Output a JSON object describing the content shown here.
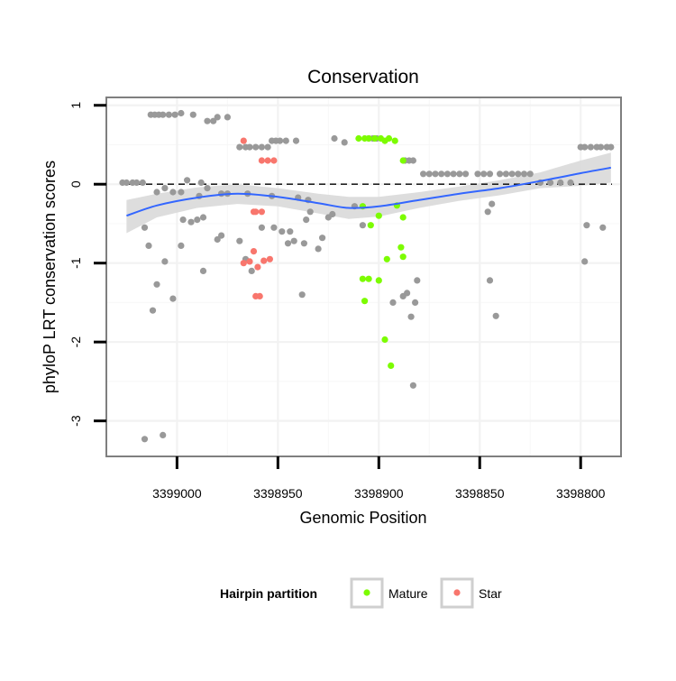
{
  "chart_data": {
    "type": "scatter",
    "title": "Conservation",
    "xlabel": "Genomic Position",
    "ylabel": "phyloP LRT conservation scores",
    "x_reversed": true,
    "xlim": [
      3399035,
      3398780
    ],
    "ylim": [
      -3.45,
      1.1
    ],
    "x_ticks": [
      3399000,
      3398950,
      3398900,
      3398850,
      3398800
    ],
    "x_tick_labels": [
      "3399000",
      "3398950",
      "3398900",
      "3398850",
      "3398800"
    ],
    "y_ticks": [
      1,
      0,
      -1,
      -2,
      -3
    ],
    "y_tick_labels": [
      "1",
      "0",
      "-1",
      "-2",
      "-3"
    ],
    "reference_line": {
      "y": 0,
      "style": "dashed"
    },
    "legend": {
      "title": "Hairpin partition",
      "position": "bottom",
      "entries": [
        "Mature",
        "Star"
      ]
    },
    "colors": {
      "Mature": "#7CFC00",
      "Star": "#F8766D",
      "Other": "#999999",
      "smooth": "#3366FF",
      "band": "#D9D9D9"
    },
    "series": [
      {
        "name": "Other",
        "points": [
          [
            3399027,
            0.02
          ],
          [
            3399025,
            0.02
          ],
          [
            3399022,
            0.02
          ],
          [
            3399020,
            0.02
          ],
          [
            3399017,
            0.02
          ],
          [
            3399013,
            0.88
          ],
          [
            3399011,
            0.88
          ],
          [
            3399009,
            0.88
          ],
          [
            3399007,
            0.88
          ],
          [
            3399004,
            0.88
          ],
          [
            3399001,
            0.88
          ],
          [
            3398998,
            0.9
          ],
          [
            3398992,
            0.88
          ],
          [
            3398985,
            0.8
          ],
          [
            3398982,
            0.8
          ],
          [
            3398980,
            0.85
          ],
          [
            3398975,
            0.85
          ],
          [
            3398969,
            0.47
          ],
          [
            3398966,
            0.47
          ],
          [
            3398964,
            0.47
          ],
          [
            3398961,
            0.47
          ],
          [
            3398958,
            0.47
          ],
          [
            3398955,
            0.47
          ],
          [
            3398953,
            0.55
          ],
          [
            3398951,
            0.55
          ],
          [
            3398949,
            0.55
          ],
          [
            3398946,
            0.55
          ],
          [
            3398941,
            0.55
          ],
          [
            3398922,
            0.58
          ],
          [
            3398917,
            0.53
          ],
          [
            3398905,
            0.58
          ],
          [
            3398903,
            0.58
          ],
          [
            3398901,
            0.58
          ],
          [
            3398887,
            0.3
          ],
          [
            3398885,
            0.3
          ],
          [
            3398883,
            0.3
          ],
          [
            3398878,
            0.13
          ],
          [
            3398875,
            0.13
          ],
          [
            3398872,
            0.13
          ],
          [
            3398869,
            0.13
          ],
          [
            3398866,
            0.13
          ],
          [
            3398863,
            0.13
          ],
          [
            3398860,
            0.13
          ],
          [
            3398857,
            0.13
          ],
          [
            3398851,
            0.13
          ],
          [
            3398848,
            0.13
          ],
          [
            3398845,
            0.13
          ],
          [
            3398840,
            0.13
          ],
          [
            3398837,
            0.13
          ],
          [
            3398834,
            0.13
          ],
          [
            3398831,
            0.13
          ],
          [
            3398828,
            0.13
          ],
          [
            3398825,
            0.13
          ],
          [
            3398820,
            0.02
          ],
          [
            3398815,
            0.02
          ],
          [
            3398810,
            0.02
          ],
          [
            3398805,
            0.02
          ],
          [
            3398800,
            0.47
          ],
          [
            3398798,
            0.47
          ],
          [
            3398795,
            0.47
          ],
          [
            3398792,
            0.47
          ],
          [
            3398790,
            0.47
          ],
          [
            3398787,
            0.47
          ],
          [
            3398785,
            0.47
          ],
          [
            3399010,
            -0.1
          ],
          [
            3399006,
            -0.05
          ],
          [
            3399002,
            -0.1
          ],
          [
            3398998,
            -0.1
          ],
          [
            3398995,
            0.05
          ],
          [
            3398988,
            0.02
          ],
          [
            3398985,
            -0.05
          ],
          [
            3398978,
            -0.12
          ],
          [
            3398989,
            -0.15
          ],
          [
            3398975,
            -0.12
          ],
          [
            3398965,
            -0.12
          ],
          [
            3398953,
            -0.15
          ],
          [
            3398940,
            -0.17
          ],
          [
            3398935,
            -0.2
          ],
          [
            3398997,
            -0.45
          ],
          [
            3398993,
            -0.48
          ],
          [
            3398990,
            -0.45
          ],
          [
            3398987,
            -0.42
          ],
          [
            3398980,
            -0.7
          ],
          [
            3398978,
            -0.65
          ],
          [
            3398958,
            -0.55
          ],
          [
            3398952,
            -0.55
          ],
          [
            3398948,
            -0.6
          ],
          [
            3398944,
            -0.6
          ],
          [
            3398942,
            -0.72
          ],
          [
            3398936,
            -0.45
          ],
          [
            3398934,
            -0.35
          ],
          [
            3398937,
            -0.75
          ],
          [
            3398945,
            -0.75
          ],
          [
            3398930,
            -0.82
          ],
          [
            3398928,
            -0.68
          ],
          [
            3398925,
            -0.42
          ],
          [
            3398923,
            -0.38
          ],
          [
            3399016,
            -0.55
          ],
          [
            3399014,
            -0.78
          ],
          [
            3399010,
            -1.27
          ],
          [
            3399006,
            -0.98
          ],
          [
            3398998,
            -0.78
          ],
          [
            3398987,
            -1.1
          ],
          [
            3398969,
            -0.72
          ],
          [
            3398966,
            -0.95
          ],
          [
            3398963,
            -1.1
          ],
          [
            3399012,
            -1.6
          ],
          [
            3399002,
            -1.45
          ],
          [
            3398938,
            -1.4
          ],
          [
            3398912,
            -0.28
          ],
          [
            3398908,
            -0.52
          ],
          [
            3398893,
            -1.5
          ],
          [
            3398888,
            -1.42
          ],
          [
            3398886,
            -1.38
          ],
          [
            3398884,
            -1.68
          ],
          [
            3398882,
            -1.5
          ],
          [
            3398881,
            -1.22
          ],
          [
            3398883,
            -2.55
          ],
          [
            3398846,
            -0.35
          ],
          [
            3398844,
            -0.25
          ],
          [
            3398845,
            -1.22
          ],
          [
            3398842,
            -1.67
          ],
          [
            3398797,
            -0.52
          ],
          [
            3398798,
            -0.98
          ],
          [
            3398789,
            -0.55
          ],
          [
            3399016,
            -3.23
          ],
          [
            3399007,
            -3.18
          ]
        ]
      },
      {
        "name": "Mature",
        "points": [
          [
            3398910,
            0.58
          ],
          [
            3398907,
            0.58
          ],
          [
            3398905,
            0.58
          ],
          [
            3398902,
            0.58
          ],
          [
            3398899,
            0.58
          ],
          [
            3398897,
            0.55
          ],
          [
            3398895,
            0.58
          ],
          [
            3398892,
            0.55
          ],
          [
            3398888,
            0.3
          ],
          [
            3398908,
            -0.28
          ],
          [
            3398900,
            -0.4
          ],
          [
            3398891,
            -0.27
          ],
          [
            3398888,
            -0.42
          ],
          [
            3398904,
            -0.52
          ],
          [
            3398889,
            -0.8
          ],
          [
            3398888,
            -0.92
          ],
          [
            3398896,
            -0.95
          ],
          [
            3398908,
            -1.2
          ],
          [
            3398905,
            -1.2
          ],
          [
            3398900,
            -1.22
          ],
          [
            3398907,
            -1.48
          ],
          [
            3398897,
            -1.97
          ],
          [
            3398894,
            -2.3
          ]
        ]
      },
      {
        "name": "Star",
        "points": [
          [
            3398967,
            0.55
          ],
          [
            3398958,
            0.3
          ],
          [
            3398955,
            0.3
          ],
          [
            3398952,
            0.3
          ],
          [
            3398958,
            -0.35
          ],
          [
            3398961,
            -0.35
          ],
          [
            3398962,
            -0.35
          ],
          [
            3398964,
            -0.98
          ],
          [
            3398967,
            -1.0
          ],
          [
            3398962,
            -0.85
          ],
          [
            3398957,
            -0.97
          ],
          [
            3398954,
            -0.95
          ],
          [
            3398960,
            -1.05
          ],
          [
            3398959,
            -1.42
          ],
          [
            3398961,
            -1.42
          ]
        ]
      }
    ],
    "smooth_curve": [
      [
        3399025,
        -0.4
      ],
      [
        3399010,
        -0.27
      ],
      [
        3398990,
        -0.17
      ],
      [
        3398970,
        -0.12
      ],
      [
        3398950,
        -0.16
      ],
      [
        3398930,
        -0.24
      ],
      [
        3398915,
        -0.3
      ],
      [
        3398900,
        -0.28
      ],
      [
        3398880,
        -0.2
      ],
      [
        3398860,
        -0.12
      ],
      [
        3398840,
        -0.05
      ],
      [
        3398820,
        0.04
      ],
      [
        3398800,
        0.14
      ],
      [
        3398785,
        0.21
      ]
    ],
    "confidence_band": {
      "upper": [
        [
          3399025,
          -0.2
        ],
        [
          3399010,
          -0.12
        ],
        [
          3398990,
          -0.04
        ],
        [
          3398970,
          0.0
        ],
        [
          3398950,
          -0.05
        ],
        [
          3398930,
          -0.12
        ],
        [
          3398915,
          -0.16
        ],
        [
          3398900,
          -0.16
        ],
        [
          3398880,
          -0.1
        ],
        [
          3398860,
          -0.03
        ],
        [
          3398840,
          0.05
        ],
        [
          3398820,
          0.15
        ],
        [
          3398800,
          0.3
        ],
        [
          3398785,
          0.4
        ]
      ],
      "lower": [
        [
          3399025,
          -0.62
        ],
        [
          3399010,
          -0.42
        ],
        [
          3398990,
          -0.3
        ],
        [
          3398970,
          -0.25
        ],
        [
          3398950,
          -0.28
        ],
        [
          3398930,
          -0.37
        ],
        [
          3398915,
          -0.44
        ],
        [
          3398900,
          -0.41
        ],
        [
          3398880,
          -0.3
        ],
        [
          3398860,
          -0.21
        ],
        [
          3398840,
          -0.14
        ],
        [
          3398820,
          -0.05
        ],
        [
          3398800,
          -0.02
        ],
        [
          3398785,
          0.02
        ]
      ]
    }
  }
}
